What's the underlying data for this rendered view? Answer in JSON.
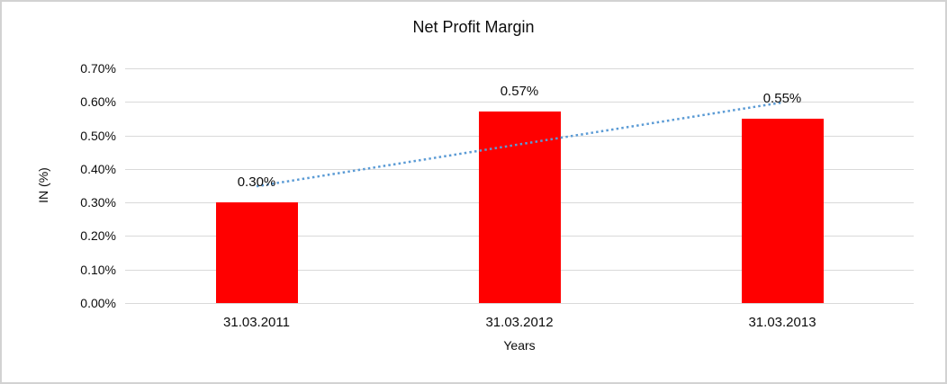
{
  "chart_data": {
    "type": "bar",
    "title": "Net Profit Margin",
    "xlabel": "Years",
    "ylabel": "IN (%)",
    "categories": [
      "31.03.2011",
      "31.03.2012",
      "31.03.2013"
    ],
    "values": [
      0.3,
      0.57,
      0.55
    ],
    "data_labels": [
      "0.30%",
      "0.57%",
      "0.55%"
    ],
    "ylim": [
      0,
      0.7
    ],
    "ytick_step": 0.1,
    "ytick_labels": [
      "0.00%",
      "0.10%",
      "0.20%",
      "0.30%",
      "0.40%",
      "0.50%",
      "0.60%",
      "0.70%"
    ],
    "grid": true,
    "legend": "none",
    "bar_color": "#ff0000",
    "gridline_color": "#d9d9d9",
    "trendline": {
      "type": "linear",
      "style": "dotted",
      "color": "#5b9bd5"
    }
  },
  "frame": {
    "border_color": "#d2d2d2"
  }
}
